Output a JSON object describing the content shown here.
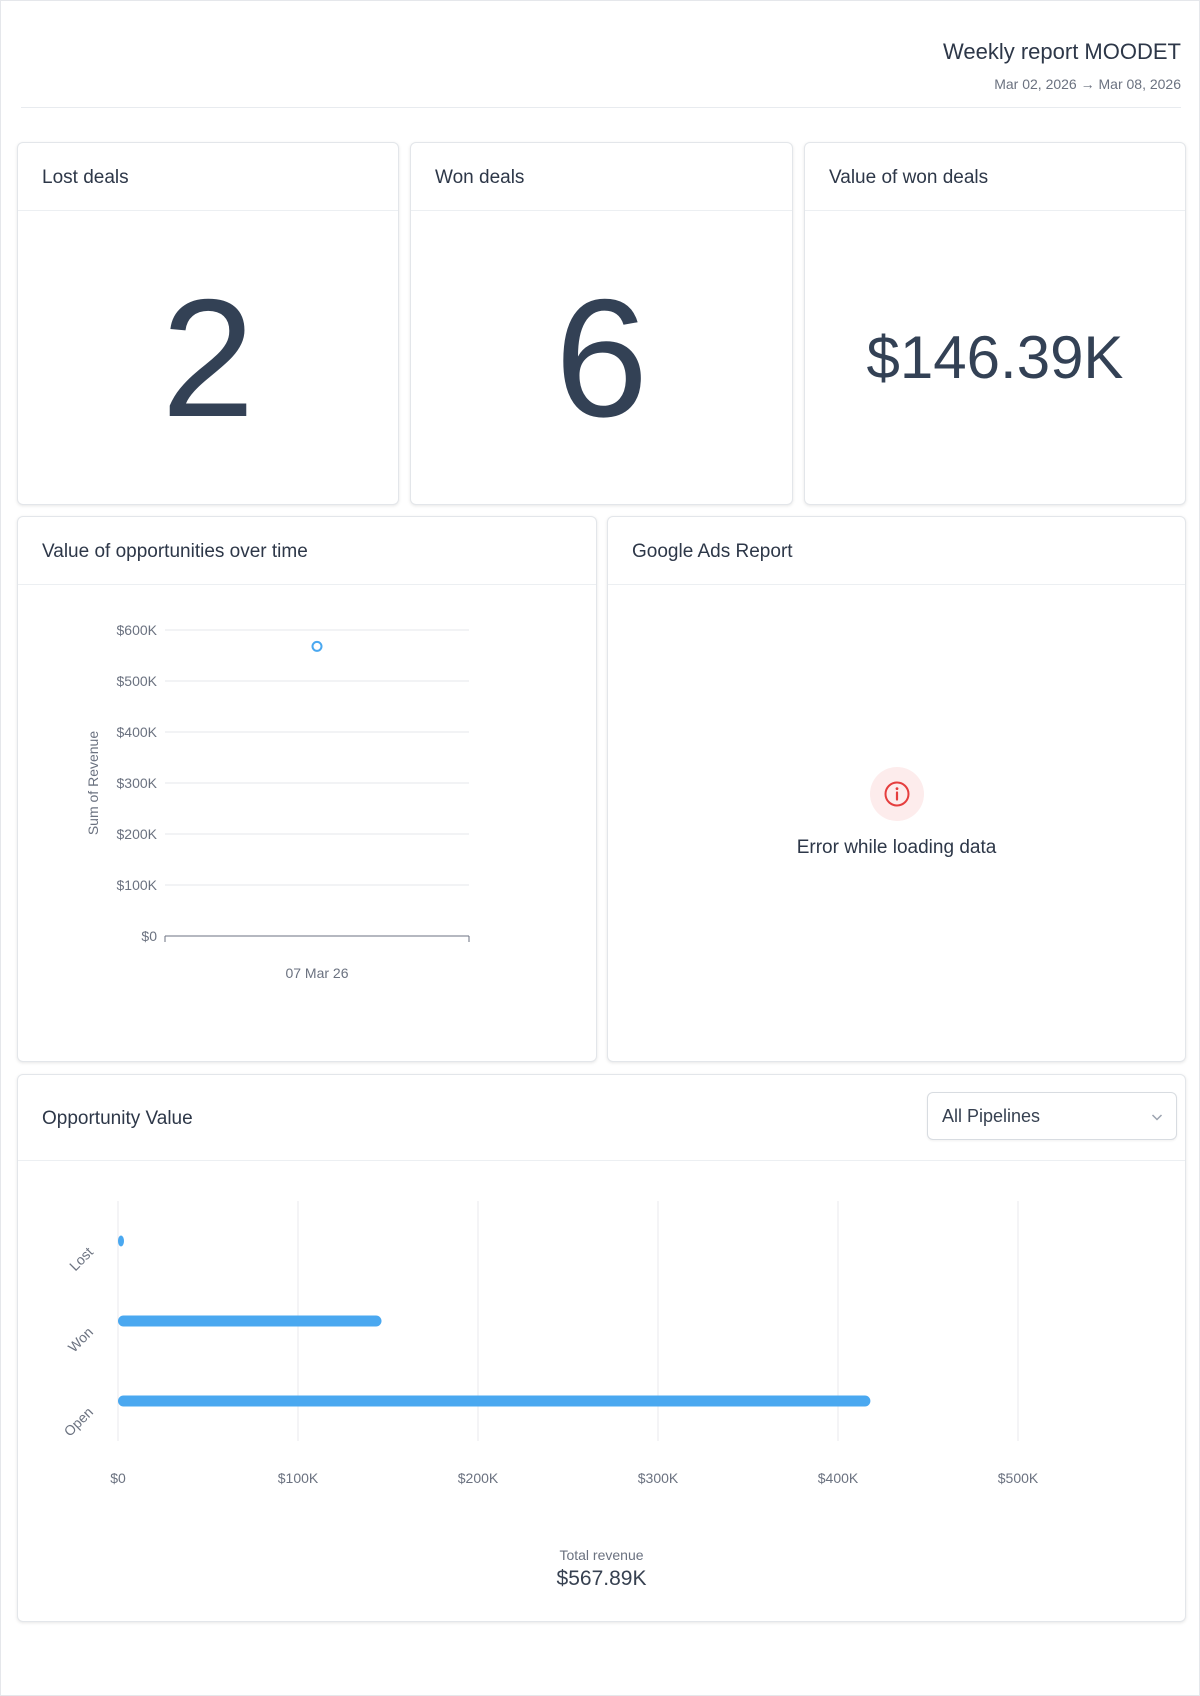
{
  "header": {
    "title": "Weekly report MOODET",
    "date_range": "Mar 02, 2026 → Mar 08, 2026"
  },
  "kpis": {
    "lost": {
      "title": "Lost deals",
      "value": "2"
    },
    "won": {
      "title": "Won deals",
      "value": "6"
    },
    "won_value": {
      "title": "Value of won deals",
      "value": "$146.39K"
    }
  },
  "opportunities_over_time": {
    "title": "Value of opportunities over time"
  },
  "google_ads": {
    "title": "Google Ads Report",
    "error_text": "Error while loading data",
    "error_icon": "info-circle-icon",
    "error_color": "#e53e3e"
  },
  "opportunity_value": {
    "title": "Opportunity Value",
    "pipeline_select": {
      "value": "All Pipelines",
      "icon": "chevron-down-icon"
    },
    "total_label": "Total revenue",
    "total_value": "$567.89K"
  },
  "colors": {
    "accent": "#4aa8f0",
    "text": "#2d3748",
    "muted": "#6b7280"
  },
  "chart_data": [
    {
      "type": "scatter",
      "ylabel": "Sum of Revenue",
      "xlabel": "",
      "categories": [
        "07 Mar 26"
      ],
      "values": [
        567890
      ],
      "ylim": [
        0,
        600000
      ],
      "yticks": [
        0,
        100000,
        200000,
        300000,
        400000,
        500000,
        600000
      ],
      "ytick_labels": [
        "$0",
        "$100K",
        "$200K",
        "$300K",
        "$400K",
        "$500K",
        "$600K"
      ],
      "grid": true
    },
    {
      "type": "bar",
      "orientation": "horizontal",
      "categories": [
        "Lost",
        "Won",
        "Open"
      ],
      "values": [
        1500,
        146390,
        418000
      ],
      "xlim": [
        0,
        500000
      ],
      "xticks": [
        0,
        100000,
        200000,
        300000,
        400000,
        500000
      ],
      "xtick_labels": [
        "$0",
        "$100K",
        "$200K",
        "$300K",
        "$400K",
        "$500K"
      ],
      "grid": true
    }
  ]
}
